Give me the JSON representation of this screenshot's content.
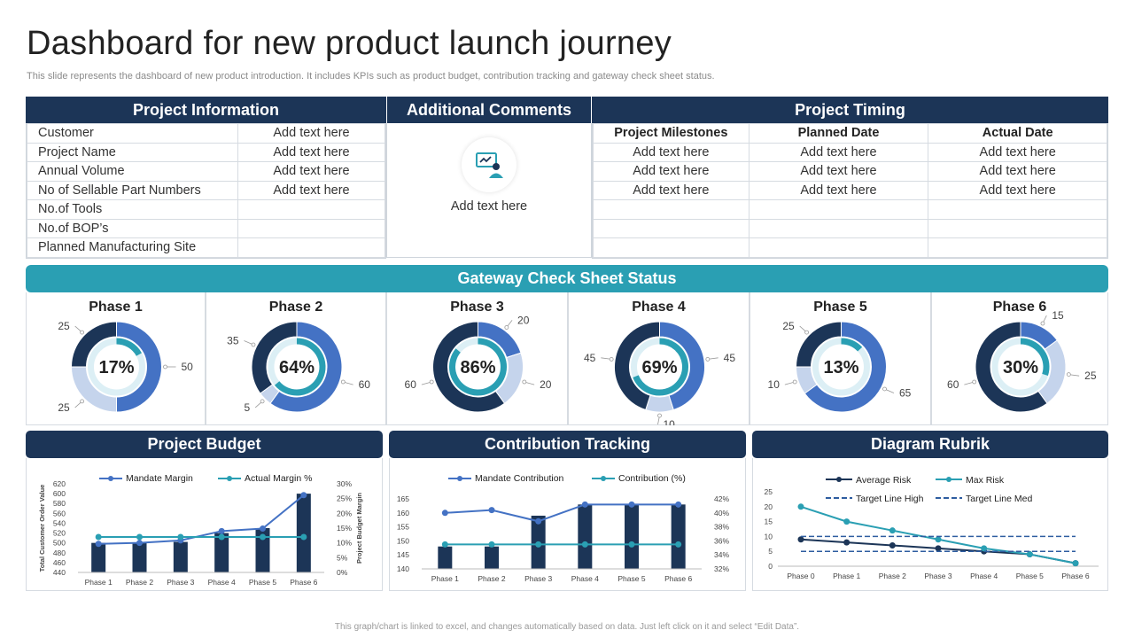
{
  "page": {
    "title": "Dashboard for new product launch journey",
    "subtitle": "This slide represents the dashboard of new product introduction. It includes KPIs such as product budget, contribution tracking and gateway check sheet status.",
    "footer": "This graph/chart is linked to excel, and changes automatically based on data. Just left click on it and select “Edit Data”."
  },
  "project_info": {
    "header": "Project Information",
    "rows": [
      {
        "label": "Customer",
        "value": "Add text here"
      },
      {
        "label": "Project Name",
        "value": "Add text here"
      },
      {
        "label": "Annual Volume",
        "value": "Add text here"
      },
      {
        "label": "No of Sellable Part Numbers",
        "value": "Add text here"
      },
      {
        "label": "No.of Tools",
        "value": ""
      },
      {
        "label": "No.of BOP’s",
        "value": ""
      },
      {
        "label": "Planned Manufacturing Site",
        "value": ""
      }
    ]
  },
  "comments": {
    "header": "Additional Comments",
    "text": "Add text here",
    "icon": "presentation-user-icon"
  },
  "timing": {
    "header": "Project Timing",
    "columns": [
      "Project Milestones",
      "Planned Date",
      "Actual Date"
    ],
    "rows": [
      [
        "Add text here",
        "Add text here",
        "Add text here"
      ],
      [
        "Add text here",
        "Add text here",
        "Add text here"
      ],
      [
        "Add text here",
        "Add text here",
        "Add text here"
      ],
      [
        "",
        "",
        ""
      ],
      [
        "",
        "",
        ""
      ],
      [
        "",
        "",
        ""
      ]
    ]
  },
  "gateway": {
    "header": "Gateway Check Sheet Status"
  },
  "colors": {
    "navy": "#1c3557",
    "teal": "#2a9fb3",
    "blue": "#4472c4",
    "light_blue": "#c5d4ec",
    "pale": "#dceff5"
  },
  "panels": {
    "budget": "Project Budget",
    "contribution": "Contribution Tracking",
    "rubrik": "Diagram Rubrik"
  },
  "chart_data": [
    {
      "type": "pie",
      "title": "Phase 1",
      "center_label": "17%",
      "values": [
        50,
        25,
        25
      ],
      "colors": [
        "#4472c4",
        "#c5d4ec",
        "#1c3557"
      ],
      "start": 0,
      "inner_pct": 0.17
    },
    {
      "type": "pie",
      "title": "Phase 2",
      "center_label": "64%",
      "values": [
        60,
        5,
        35
      ],
      "colors": [
        "#4472c4",
        "#c5d4ec",
        "#1c3557"
      ],
      "start": 0,
      "inner_pct": 0.64
    },
    {
      "type": "pie",
      "title": "Phase 3",
      "center_label": "86%",
      "values": [
        20,
        20,
        60
      ],
      "colors": [
        "#4472c4",
        "#c5d4ec",
        "#1c3557"
      ],
      "start": 0,
      "inner_pct": 0.86
    },
    {
      "type": "pie",
      "title": "Phase 4",
      "center_label": "69%",
      "values": [
        45,
        10,
        45
      ],
      "colors": [
        "#4472c4",
        "#c5d4ec",
        "#1c3557"
      ],
      "start": 0,
      "inner_pct": 0.69
    },
    {
      "type": "pie",
      "title": "Phase 5",
      "center_label": "13%",
      "values": [
        65,
        10,
        25
      ],
      "colors": [
        "#4472c4",
        "#c5d4ec",
        "#1c3557"
      ],
      "start": 0,
      "inner_pct": 0.13
    },
    {
      "type": "pie",
      "title": "Phase 6",
      "center_label": "30%",
      "values": [
        15,
        25,
        60
      ],
      "colors": [
        "#4472c4",
        "#c5d4ec",
        "#1c3557"
      ],
      "start": 0,
      "inner_pct": 0.3
    },
    {
      "type": "bar",
      "title": "Project Budget",
      "categories": [
        "Phase 1",
        "Phase 2",
        "Phase 3",
        "Phase 4",
        "Phase 5",
        "Phase 6"
      ],
      "ylabel": "Total Customer Order Value",
      "y2label": "Project Budget Margin",
      "ylim": [
        440,
        620
      ],
      "yticks": [
        440,
        460,
        480,
        500,
        520,
        540,
        560,
        580,
        600,
        620
      ],
      "y2lim": [
        0,
        30
      ],
      "y2ticks": [
        "0%",
        "5%",
        "10%",
        "15%",
        "20%",
        "25%",
        "30%"
      ],
      "bars": [
        500,
        500,
        502,
        520,
        530,
        600
      ],
      "series": [
        {
          "name": "Mandate Margin",
          "axis": "left",
          "values": [
            498,
            500,
            505,
            524,
            529,
            597
          ]
        },
        {
          "name": "Actual Margin %",
          "axis": "right",
          "values": [
            12,
            12,
            12,
            12,
            12,
            12
          ]
        }
      ]
    },
    {
      "type": "bar",
      "title": "Contribution Tracking",
      "categories": [
        "Phase 1",
        "Phase 2",
        "Phase 3",
        "Phase 4",
        "Phase 5",
        "Phase 6"
      ],
      "ylim": [
        140,
        165
      ],
      "yticks": [
        140,
        145,
        150,
        155,
        160,
        165
      ],
      "y2lim": [
        32,
        42
      ],
      "y2ticks": [
        "32%",
        "34%",
        "36%",
        "38%",
        "40%",
        "42%"
      ],
      "bars": [
        148,
        148,
        159,
        163,
        163,
        163
      ],
      "series": [
        {
          "name": "Mandate Contribution",
          "axis": "left",
          "values": [
            160,
            161,
            157,
            163,
            163,
            163
          ]
        },
        {
          "name": "Contribution (%)",
          "axis": "right",
          "values": [
            35.5,
            35.5,
            35.5,
            35.5,
            35.5,
            35.5
          ]
        }
      ]
    },
    {
      "type": "line",
      "title": "Diagram Rubrik",
      "categories": [
        "Phase 0",
        "Phase 1",
        "Phase 2",
        "Phase 3",
        "Phase 4",
        "Phase 5",
        "Phase 6"
      ],
      "ylim": [
        0,
        25
      ],
      "yticks": [
        0,
        5,
        10,
        15,
        20,
        25
      ],
      "series": [
        {
          "name": "Average Risk",
          "values": [
            9,
            8,
            7,
            6,
            5,
            4,
            1
          ]
        },
        {
          "name": "Max Risk",
          "values": [
            20,
            15,
            12,
            9,
            6,
            4,
            1
          ]
        },
        {
          "name": "Target Line High",
          "values": [
            10,
            10,
            10,
            10,
            10,
            10,
            10
          ]
        },
        {
          "name": "Target Line Med",
          "values": [
            5,
            5,
            5,
            5,
            5,
            5,
            5
          ]
        }
      ]
    }
  ]
}
